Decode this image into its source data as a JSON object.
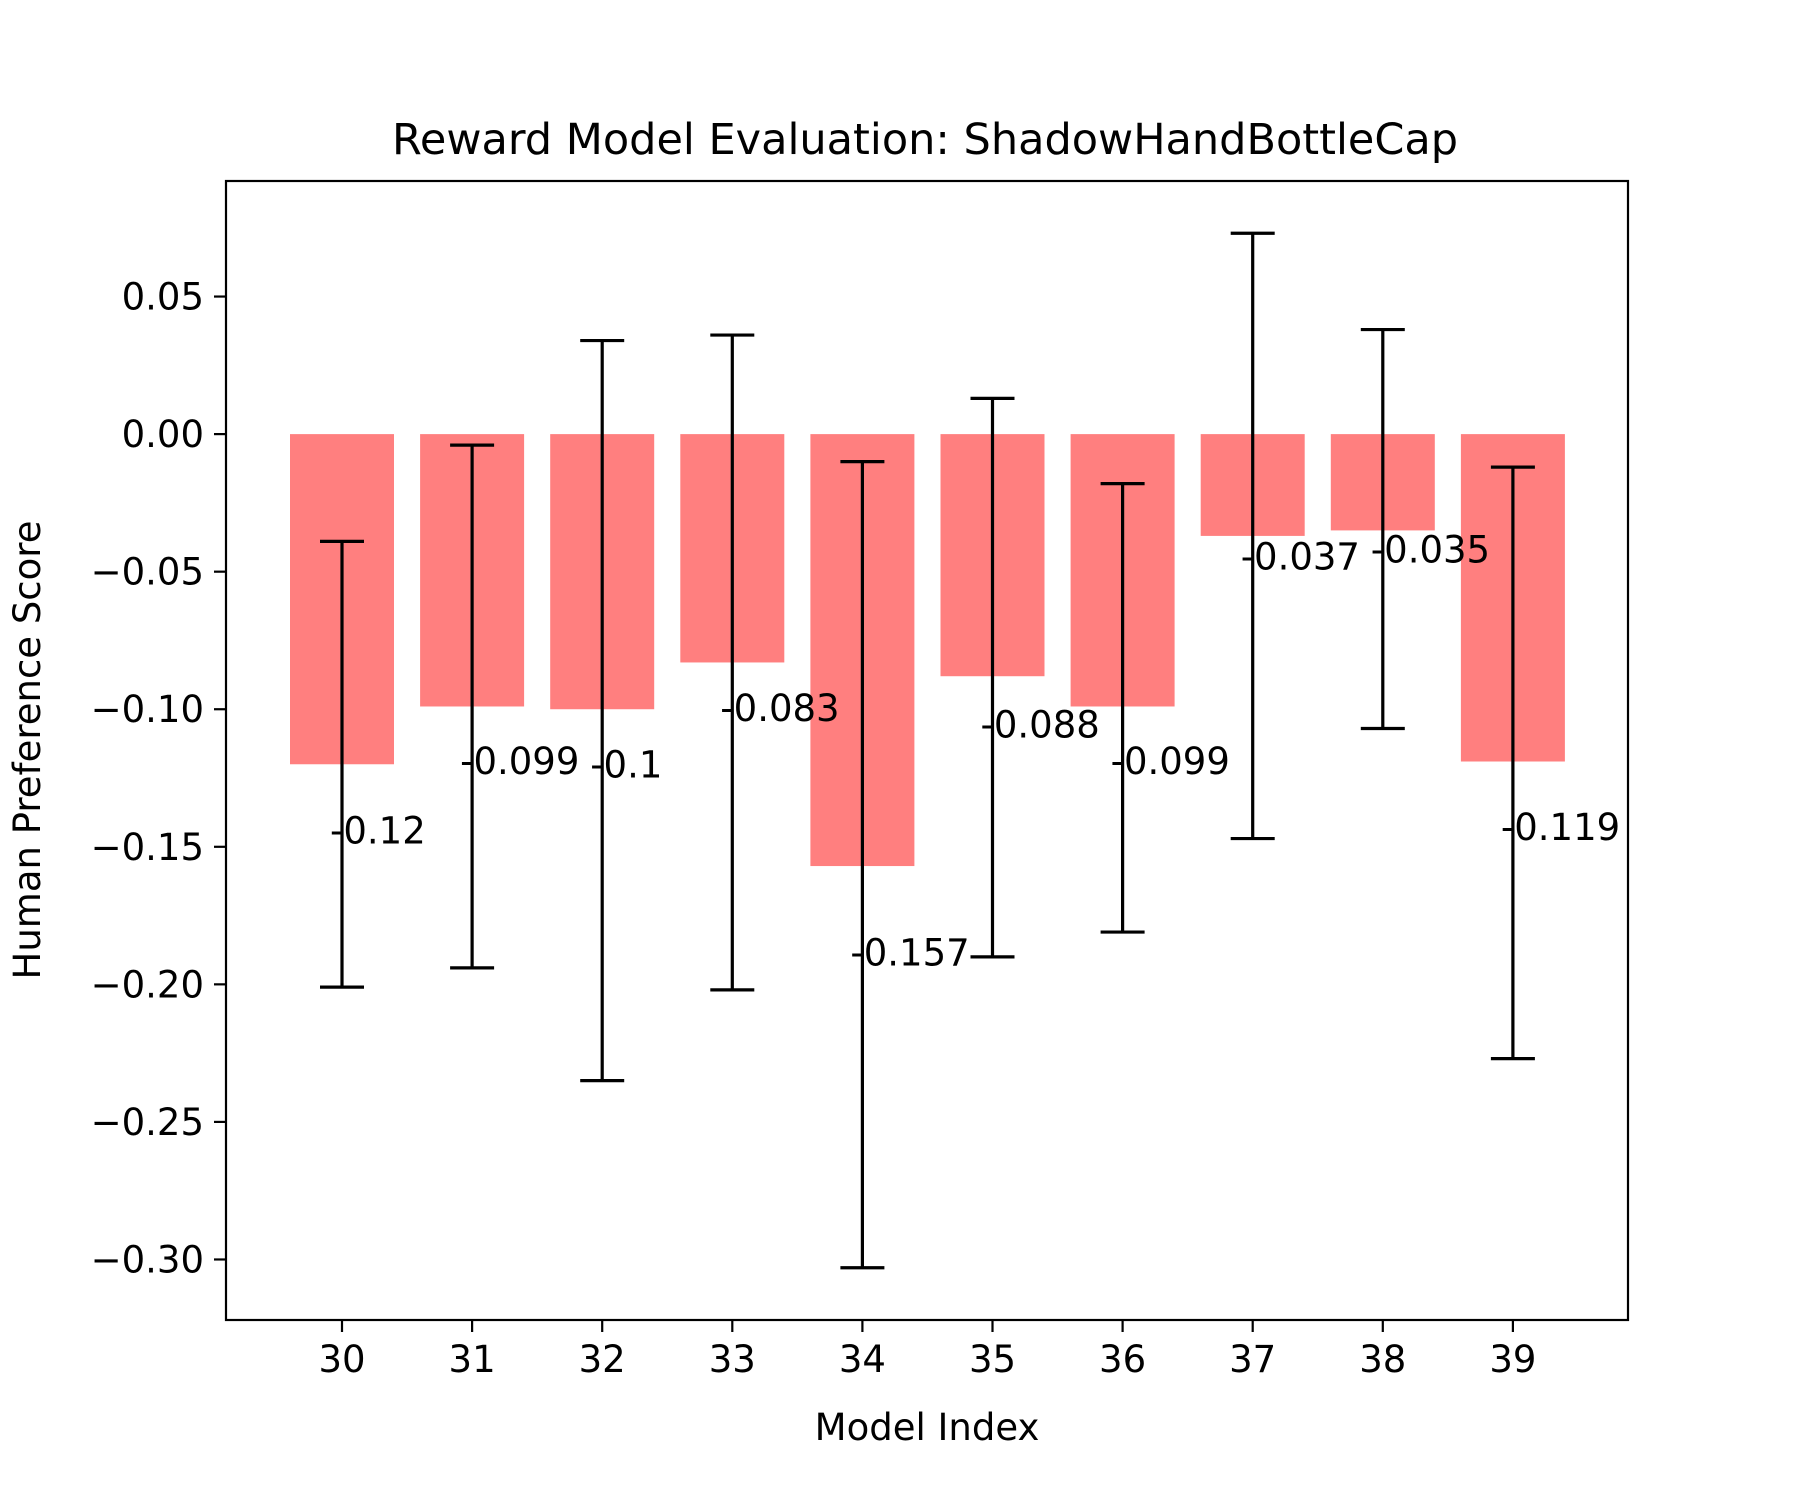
{
  "chart_data": {
    "type": "bar",
    "title": "Reward Model Evaluation: ShadowHandBottleCap",
    "xlabel": "Model Index",
    "ylabel": "Human Preference Score",
    "categories": [
      "30",
      "31",
      "32",
      "33",
      "34",
      "35",
      "36",
      "37",
      "38",
      "39"
    ],
    "values": [
      -0.12,
      -0.099,
      -0.1,
      -0.083,
      -0.157,
      -0.088,
      -0.099,
      -0.037,
      -0.035,
      -0.119
    ],
    "data_labels": [
      "-0.12",
      "-0.099",
      "-0.1",
      "-0.083",
      "-0.157",
      "-0.088",
      "-0.099",
      "-0.037",
      "-0.035",
      "-0.119"
    ],
    "error_low": [
      -0.201,
      -0.194,
      -0.235,
      -0.202,
      -0.303,
      -0.19,
      -0.181,
      -0.147,
      -0.107,
      -0.227
    ],
    "error_high": [
      -0.039,
      -0.004,
      0.034,
      0.036,
      -0.01,
      0.013,
      -0.018,
      0.073,
      0.038,
      -0.012
    ],
    "ylim": [
      -0.322,
      0.092
    ],
    "yticks": [
      0.05,
      0.0,
      -0.05,
      -0.1,
      -0.15,
      -0.2,
      -0.25,
      -0.3
    ],
    "ytick_labels": [
      "0.05",
      "0.00",
      "−0.05",
      "−0.10",
      "−0.15",
      "−0.20",
      "−0.25",
      "−0.30"
    ],
    "bar_color": "#ff7f7f",
    "error_color": "#000000",
    "grid": false,
    "legend": "none"
  }
}
